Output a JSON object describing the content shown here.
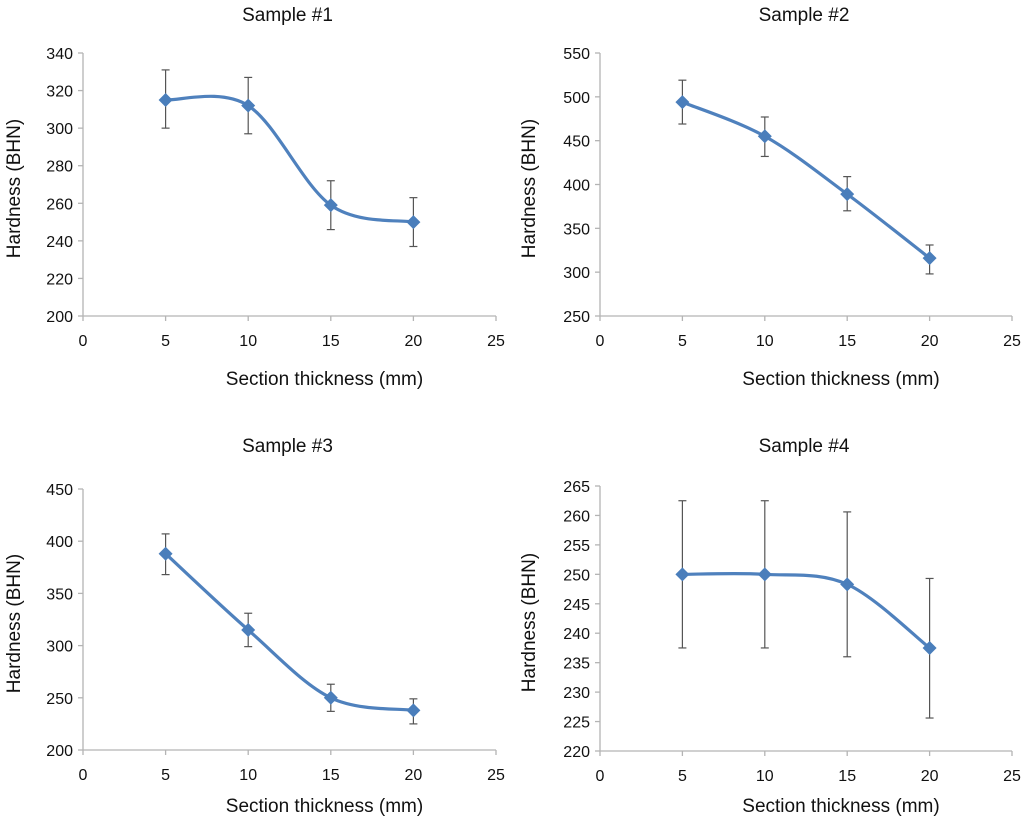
{
  "colors": {
    "series": "#4f81bd",
    "marker": "#4a7ebb",
    "error_bar": "#555555",
    "axis": "#b4b4b4"
  },
  "chart_data": [
    {
      "type": "line",
      "title": "Sample #1",
      "xlabel": "Section thickness (mm)",
      "ylabel": "Hardness (BHN)",
      "xlim": [
        0,
        25
      ],
      "ylim": [
        200,
        340
      ],
      "xticks": [
        0,
        5,
        10,
        15,
        20,
        25
      ],
      "yticks": [
        200,
        220,
        240,
        260,
        280,
        300,
        320,
        340
      ],
      "grid": false,
      "legend": "none",
      "x": [
        5,
        10,
        15,
        20
      ],
      "y": [
        315,
        312,
        259,
        250
      ],
      "error_low": [
        300,
        297,
        246,
        237
      ],
      "error_high": [
        331,
        327,
        272,
        263
      ]
    },
    {
      "type": "line",
      "title": "Sample #2",
      "xlabel": "Section thickness (mm)",
      "ylabel": "Hardness (BHN)",
      "xlim": [
        0,
        25
      ],
      "ylim": [
        250,
        550
      ],
      "xticks": [
        0,
        5,
        10,
        15,
        20,
        25
      ],
      "yticks": [
        250,
        300,
        350,
        400,
        450,
        500,
        550
      ],
      "grid": false,
      "legend": "none",
      "x": [
        5,
        10,
        15,
        20
      ],
      "y": [
        494,
        455,
        389,
        316
      ],
      "error_low": [
        469,
        432,
        370,
        298
      ],
      "error_high": [
        519,
        477,
        409,
        331
      ]
    },
    {
      "type": "line",
      "title": "Sample #3",
      "xlabel": "Section thickness (mm)",
      "ylabel": "Hardness (BHN)",
      "xlim": [
        0,
        25
      ],
      "ylim": [
        200,
        450
      ],
      "xticks": [
        0,
        5,
        10,
        15,
        20,
        25
      ],
      "yticks": [
        200,
        250,
        300,
        350,
        400,
        450
      ],
      "grid": false,
      "legend": "none",
      "x": [
        5,
        10,
        15,
        20
      ],
      "y": [
        388,
        315,
        250,
        238
      ],
      "error_low": [
        368,
        299,
        237,
        225
      ],
      "error_high": [
        407,
        331,
        263,
        249
      ]
    },
    {
      "type": "line",
      "title": "Sample #4",
      "xlabel": "Section thickness (mm)",
      "ylabel": "Hardness (BHN)",
      "xlim": [
        0,
        25
      ],
      "ylim": [
        220,
        265
      ],
      "xticks": [
        0,
        5,
        10,
        15,
        20,
        25
      ],
      "yticks": [
        220,
        225,
        230,
        235,
        240,
        245,
        250,
        255,
        260,
        265
      ],
      "grid": false,
      "legend": "none",
      "x": [
        5,
        10,
        15,
        20
      ],
      "y": [
        250,
        250,
        248.3,
        237.5
      ],
      "error_low": [
        237.5,
        237.5,
        236,
        225.6
      ],
      "error_high": [
        262.5,
        262.5,
        260.6,
        249.3
      ]
    }
  ]
}
